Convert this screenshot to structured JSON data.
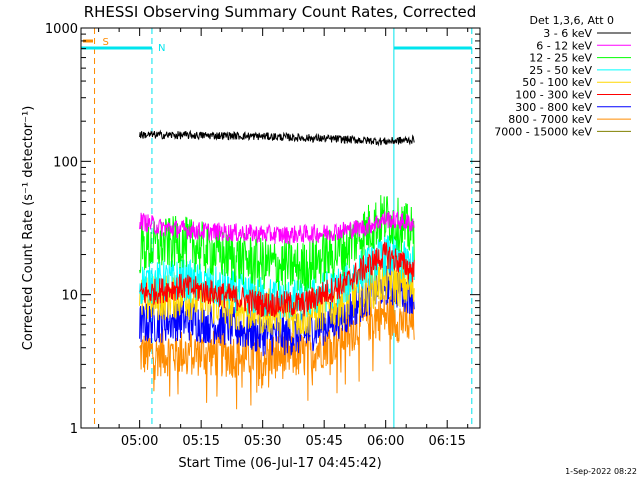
{
  "chart_data": {
    "type": "line",
    "title": "RHESSI Observing Summary Count Rates, Corrected",
    "xlabel": "Start Time (06-Jul-17 04:45:42)",
    "ylabel": "Corrected Count Rate (s⁻¹ detector⁻¹)",
    "yscale": "log",
    "ylim": [
      1,
      1000
    ],
    "xlim": [
      "04:45:42",
      "06:23"
    ],
    "x_ticks": [
      "05:00",
      "05:15",
      "05:30",
      "05:45",
      "06:00",
      "06:15"
    ],
    "y_ticks": [
      "1",
      "10",
      "100",
      "1000"
    ],
    "legend_header": "Det 1,3,6, Att 0",
    "legend_position": "right",
    "footer_date": "1-Sep-2022 08:22",
    "markers": [
      {
        "label": "S",
        "time": "04:49",
        "color": "#ff8c00"
      },
      {
        "label": "N",
        "time": "05:03",
        "color": "#00e5ee"
      }
    ],
    "vlines": [
      {
        "time": "04:45:42",
        "style": "solid",
        "color": "#00e5ee"
      },
      {
        "time": "04:49",
        "style": "dashed",
        "color": "#ff8c00"
      },
      {
        "time": "05:03",
        "style": "dashed",
        "color": "#00e5ee"
      },
      {
        "time": "06:02",
        "style": "solid",
        "color": "#00e5ee"
      },
      {
        "time": "06:21",
        "style": "dashed",
        "color": "#00e5ee"
      }
    ],
    "night_bars": [
      {
        "start": "04:45:42",
        "end": "05:03",
        "color": "#00e5ee"
      },
      {
        "start": "06:02",
        "end": "06:21",
        "color": "#00e5ee"
      }
    ],
    "data_window": [
      "05:00",
      "06:07"
    ],
    "series": [
      {
        "name": "3 - 6 keV",
        "color": "#000000",
        "x": [
          "05:00",
          "05:10",
          "05:20",
          "05:30",
          "05:40",
          "05:50",
          "06:00",
          "06:07"
        ],
        "y": [
          158,
          157,
          156,
          154,
          150,
          146,
          141,
          145
        ]
      },
      {
        "name": "6 - 12 keV",
        "color": "#ff00ff",
        "x": [
          "05:00",
          "05:05",
          "05:15",
          "05:25",
          "05:35",
          "05:45",
          "05:55",
          "06:00",
          "06:07"
        ],
        "y": [
          36,
          32,
          30,
          29,
          28,
          29,
          32,
          37,
          34
        ]
      },
      {
        "name": "12 - 25 keV",
        "color": "#00ff00",
        "x": [
          "05:00",
          "05:10",
          "05:20",
          "05:30",
          "05:40",
          "05:50",
          "05:55",
          "06:00",
          "06:07"
        ],
        "y": [
          22,
          25,
          20,
          17,
          16,
          22,
          30,
          38,
          28
        ]
      },
      {
        "name": "25 - 50 keV",
        "color": "#00ffff",
        "x": [
          "05:00",
          "05:10",
          "05:20",
          "05:30",
          "05:40",
          "05:50",
          "05:55",
          "06:00",
          "06:07"
        ],
        "y": [
          12,
          13,
          11,
          9.5,
          9,
          12,
          16,
          20,
          16
        ]
      },
      {
        "name": "50 - 100 keV",
        "color": "#ffd700",
        "x": [
          "05:00",
          "05:10",
          "05:20",
          "05:30",
          "05:40",
          "05:50",
          "05:55",
          "06:00",
          "06:07"
        ],
        "y": [
          9,
          10,
          8.5,
          7.5,
          7,
          9,
          11,
          13,
          11
        ]
      },
      {
        "name": "100 - 300 keV",
        "color": "#ff0000",
        "x": [
          "05:00",
          "05:10",
          "05:20",
          "05:30",
          "05:40",
          "05:50",
          "05:55",
          "06:00",
          "06:07"
        ],
        "y": [
          10,
          11.5,
          10,
          8.5,
          8.5,
          12,
          16,
          20,
          15
        ]
      },
      {
        "name": "300 - 800 keV",
        "color": "#0000ff",
        "x": [
          "05:00",
          "05:10",
          "05:20",
          "05:30",
          "05:40",
          "05:50",
          "05:55",
          "06:00",
          "06:07"
        ],
        "y": [
          6,
          6.5,
          6,
          5,
          5,
          7,
          9.5,
          12,
          10
        ]
      },
      {
        "name": "800 - 7000 keV",
        "color": "#ff8c00",
        "x": [
          "05:00",
          "05:10",
          "05:20",
          "05:30",
          "05:40",
          "05:50",
          "05:55",
          "06:00",
          "06:07"
        ],
        "y": [
          3.6,
          3.7,
          3.6,
          3.5,
          3.5,
          5,
          6.5,
          7,
          6
        ]
      },
      {
        "name": "7000 - 15000 keV",
        "color": "#808000",
        "x": [],
        "y": []
      }
    ]
  }
}
